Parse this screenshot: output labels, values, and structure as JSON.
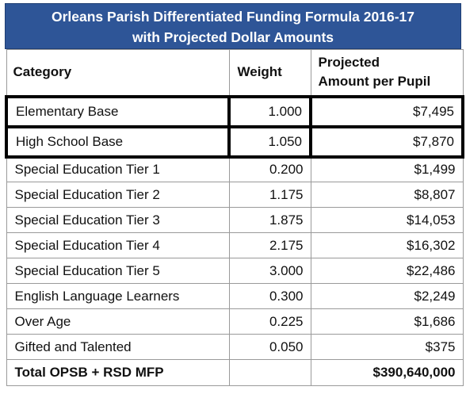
{
  "title": {
    "line1": "Orleans Parish Differentiated Funding Formula 2016-17",
    "line2": "with Projected Dollar Amounts"
  },
  "colors": {
    "header_bg": "#2e5597",
    "header_text": "#ffffff",
    "highlight_border": "#000000"
  },
  "headers": {
    "category": "Category",
    "weight": "Weight",
    "amount_line1": "Projected",
    "amount_line2": "Amount per Pupil"
  },
  "rows": [
    {
      "category": "Elementary Base",
      "weight": "1.000",
      "amount": "$7,495",
      "highlighted": true
    },
    {
      "category": "High School Base",
      "weight": "1.050",
      "amount": "$7,870",
      "highlighted": true
    },
    {
      "category": "Special Education Tier 1",
      "weight": "0.200",
      "amount": "$1,499"
    },
    {
      "category": "Special Education Tier 2",
      "weight": "1.175",
      "amount": "$8,807"
    },
    {
      "category": "Special Education Tier 3",
      "weight": "1.875",
      "amount": "$14,053"
    },
    {
      "category": "Special Education Tier 4",
      "weight": "2.175",
      "amount": "$16,302"
    },
    {
      "category": "Special Education Tier 5",
      "weight": "3.000",
      "amount": "$22,486"
    },
    {
      "category": "English Language Learners",
      "weight": "0.300",
      "amount": "$2,249"
    },
    {
      "category": "Over Age",
      "weight": "0.225",
      "amount": "$1,686"
    },
    {
      "category": "Gifted and Talented",
      "weight": "0.050",
      "amount": "$375"
    }
  ],
  "total": {
    "label": "Total OPSB + RSD MFP",
    "amount": "$390,640,000"
  }
}
